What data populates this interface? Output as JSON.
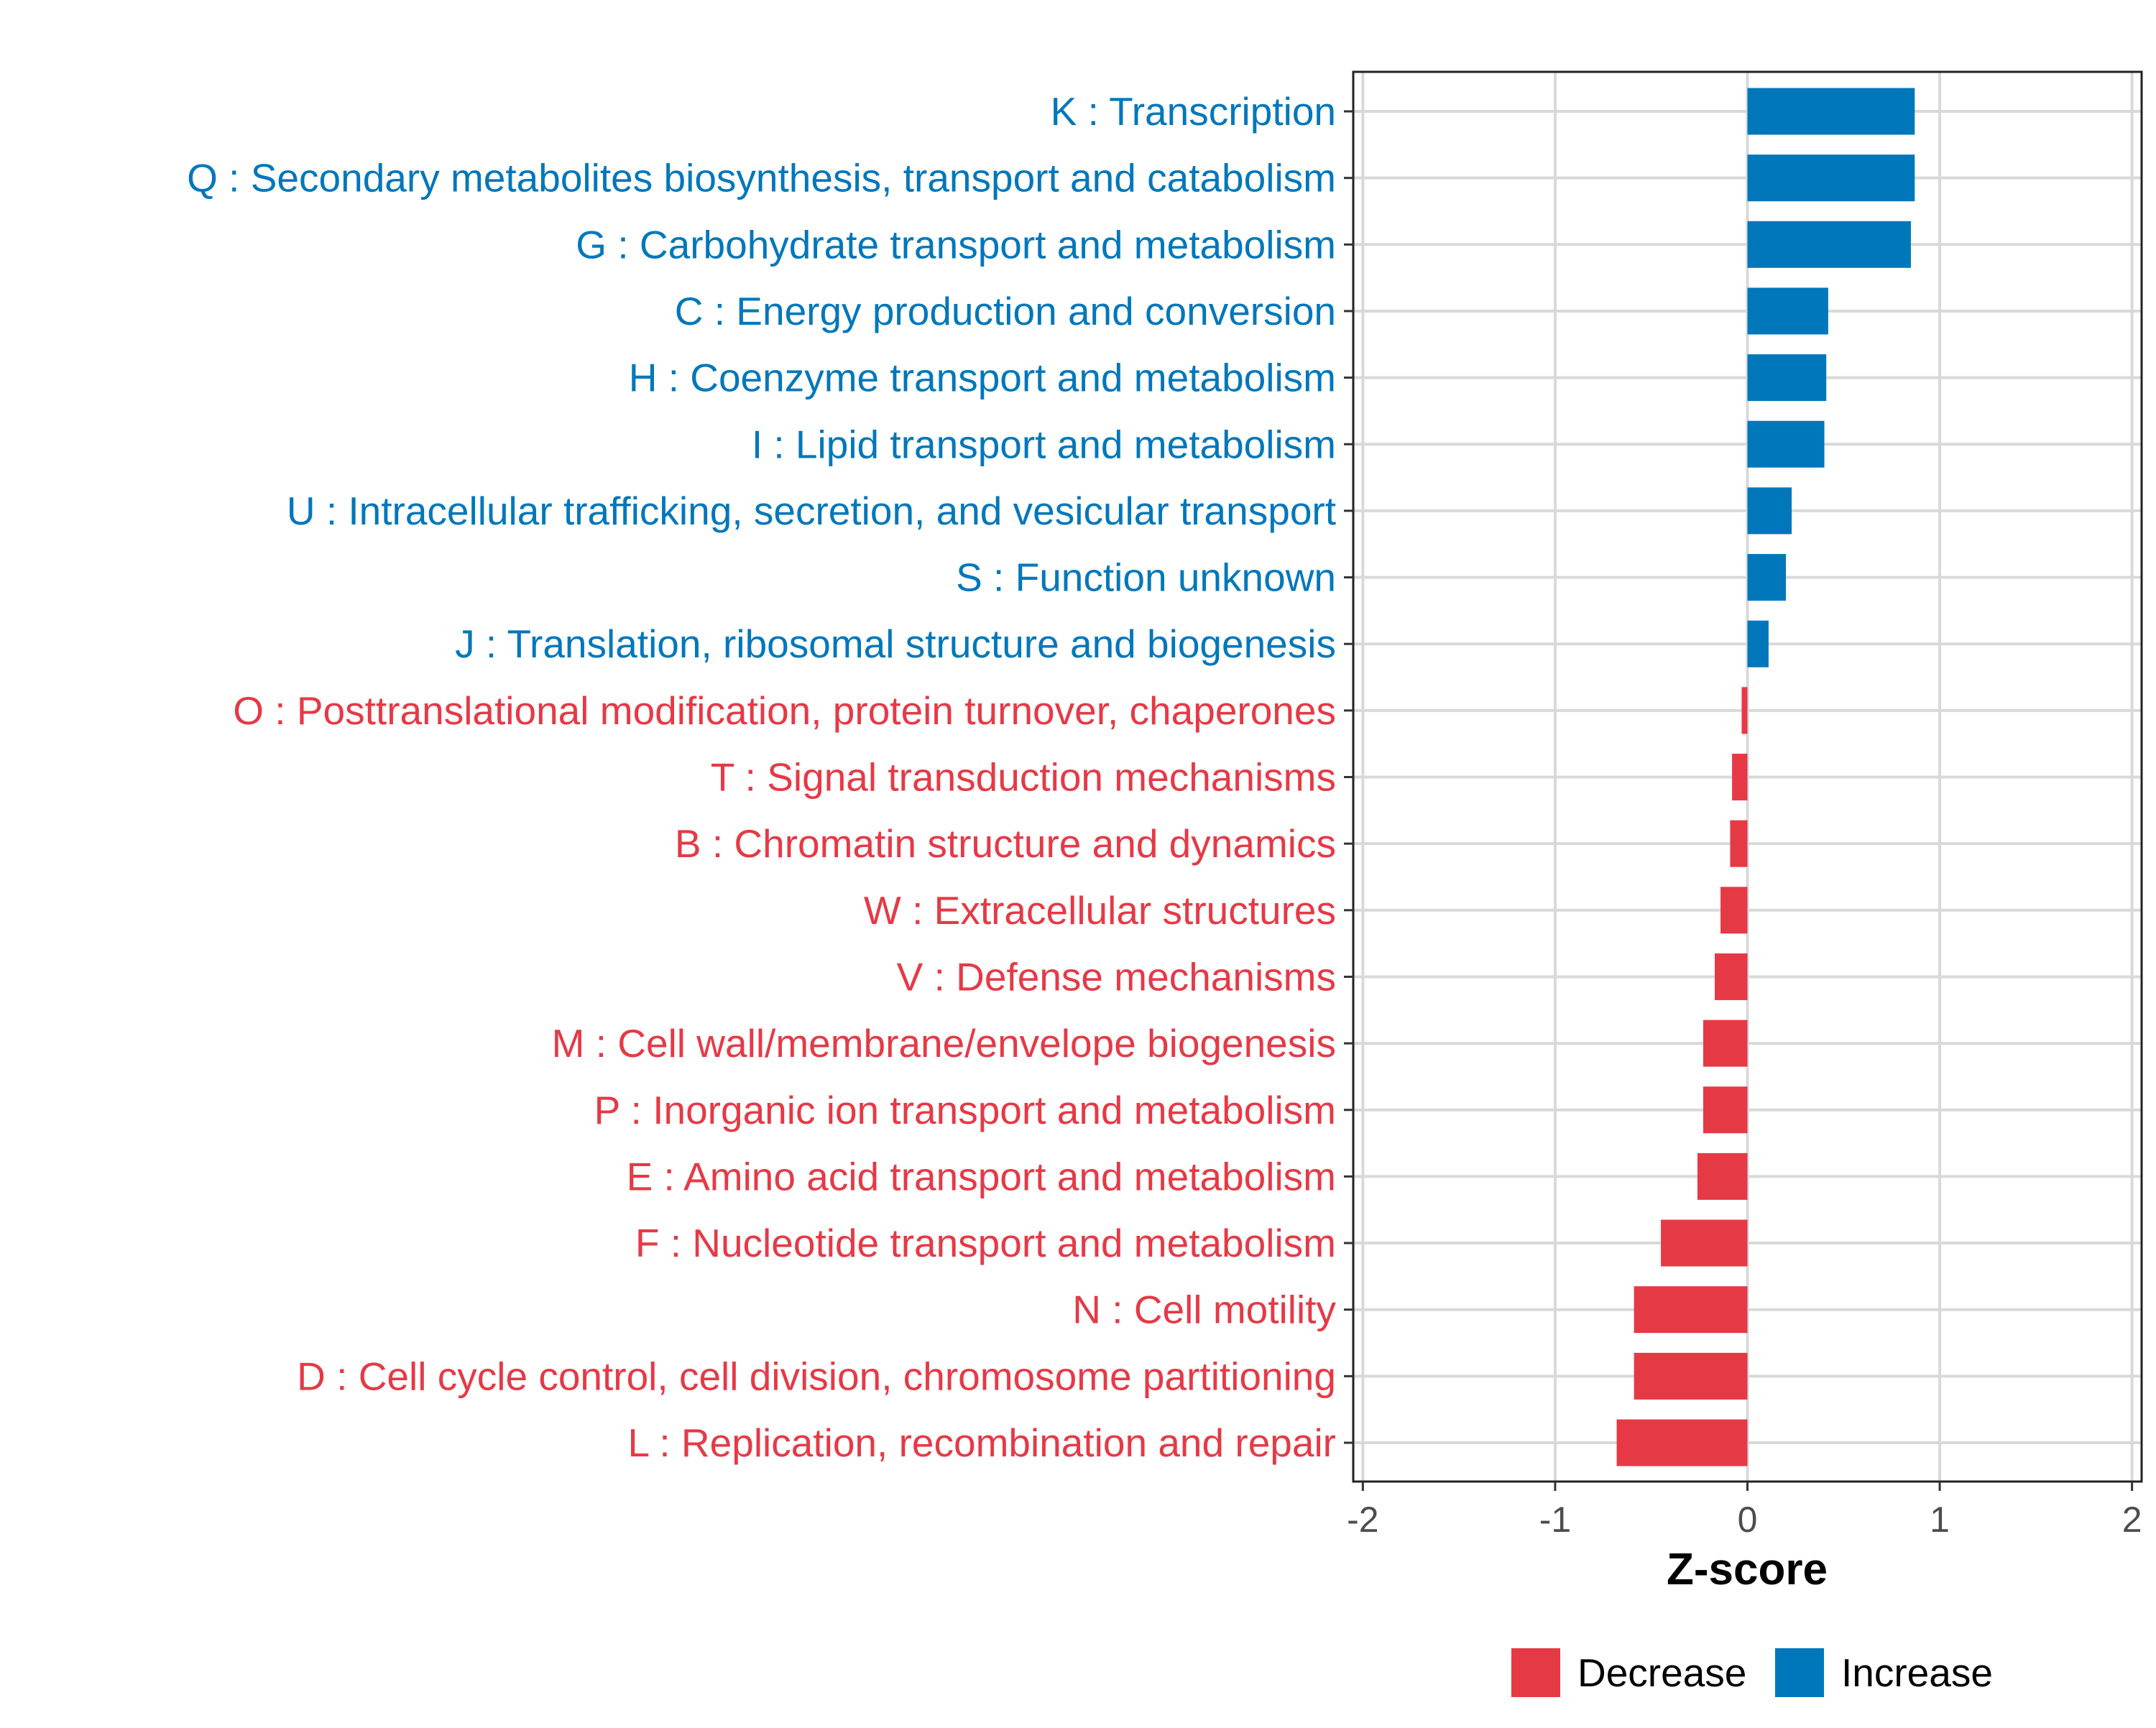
{
  "chart_data": {
    "type": "bar",
    "orientation": "horizontal",
    "xlabel": "Z-score",
    "ylabel": "",
    "xlim": [
      -2.05,
      2.05
    ],
    "x_ticks": [
      -2,
      -1,
      0,
      1,
      2
    ],
    "x_tick_labels": [
      "-2",
      "-1",
      "0",
      "1",
      "2"
    ],
    "grid": true,
    "legend_position": "bottom",
    "colors": {
      "Increase": "#0077BB",
      "Decrease": "#E63946"
    },
    "legend": [
      {
        "label": "Decrease",
        "color": "#E63946"
      },
      {
        "label": "Increase",
        "color": "#0077BB"
      }
    ],
    "categories": [
      "K : Transcription",
      "Q : Secondary metabolites biosynthesis, transport and catabolism",
      "G : Carbohydrate transport and metabolism",
      "C : Energy production and conversion",
      "H : Coenzyme transport and metabolism",
      "I : Lipid transport and metabolism",
      "U : Intracellular trafficking, secretion, and vesicular transport",
      "S : Function unknown",
      "J : Translation, ribosomal structure and biogenesis",
      "O : Posttranslational modification, protein turnover, chaperones",
      "T : Signal transduction mechanisms",
      "B : Chromatin structure and dynamics",
      "W : Extracellular structures",
      "V : Defense mechanisms",
      "M : Cell wall/membrane/envelope biogenesis",
      "P : Inorganic ion transport and metabolism",
      "E : Amino acid transport and metabolism",
      "F : Nucleotide transport and metabolism",
      "N : Cell motility",
      "D : Cell cycle control, cell division, chromosome partitioning",
      "L : Replication, recombination and repair"
    ],
    "values": [
      0.87,
      0.87,
      0.85,
      0.42,
      0.41,
      0.4,
      0.23,
      0.2,
      0.11,
      -0.03,
      -0.08,
      -0.09,
      -0.14,
      -0.17,
      -0.23,
      -0.23,
      -0.26,
      -0.45,
      -0.59,
      -0.59,
      -0.68
    ],
    "groups": [
      "Increase",
      "Increase",
      "Increase",
      "Increase",
      "Increase",
      "Increase",
      "Increase",
      "Increase",
      "Increase",
      "Decrease",
      "Decrease",
      "Decrease",
      "Decrease",
      "Decrease",
      "Decrease",
      "Decrease",
      "Decrease",
      "Decrease",
      "Decrease",
      "Decrease",
      "Decrease"
    ]
  }
}
